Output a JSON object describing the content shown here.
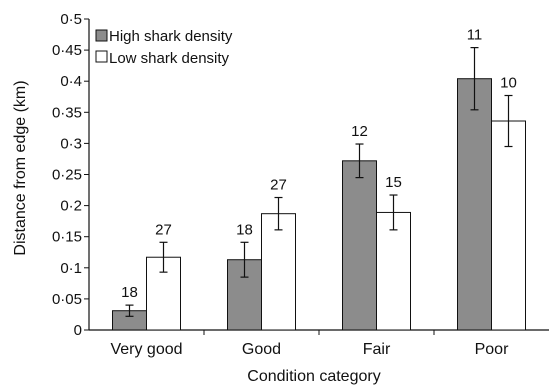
{
  "chart_data": {
    "type": "bar",
    "xlabel": "Condition category",
    "ylabel": "Distance from edge (km)",
    "ylim": [
      0,
      0.5
    ],
    "y_ticks": [
      "0",
      "0·05",
      "0·1",
      "0·15",
      "0·2",
      "0·25",
      "0·3",
      "0·35",
      "0·4",
      "0·45",
      "0·5"
    ],
    "y_tick_values": [
      0,
      0.05,
      0.1,
      0.15,
      0.2,
      0.25,
      0.3,
      0.35,
      0.4,
      0.45,
      0.5
    ],
    "categories": [
      "Very good",
      "Good",
      "Fair",
      "Poor"
    ],
    "legend_position": "top-left",
    "grid": false,
    "series": [
      {
        "name": "High shark density",
        "color": "#8c8c8c",
        "values": [
          0.031,
          0.113,
          0.272,
          0.404
        ],
        "errors": [
          0.009,
          0.028,
          0.027,
          0.05
        ],
        "n": [
          "18",
          "18",
          "12",
          "11"
        ]
      },
      {
        "name": "Low shark density",
        "color": "#ffffff",
        "values": [
          0.117,
          0.187,
          0.189,
          0.336
        ],
        "errors": [
          0.024,
          0.026,
          0.028,
          0.041
        ],
        "n": [
          "27",
          "27",
          "15",
          "10"
        ]
      }
    ]
  }
}
